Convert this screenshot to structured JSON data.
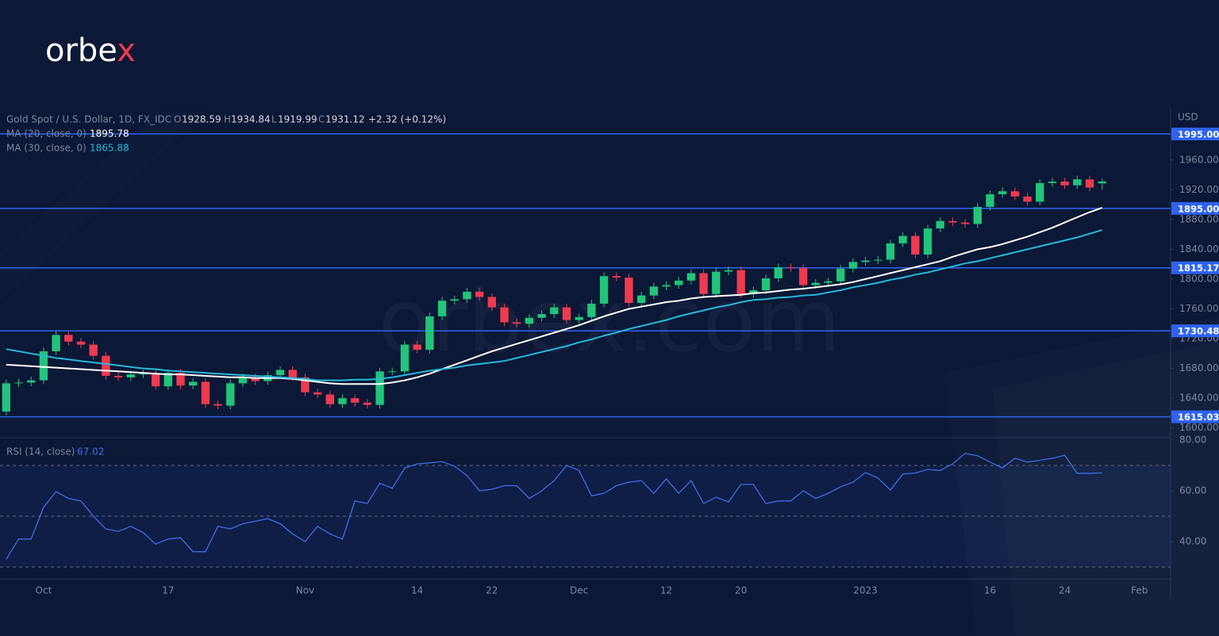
{
  "brand": [
    "orbe",
    "x"
  ],
  "watermark": "orbex.com",
  "chart_data": {
    "type": "candlestick",
    "symbol": "Gold Spot / U.S. Dollar, 1D, FX_IDC",
    "ohlc_letters": [
      "O",
      "H",
      "L",
      "C"
    ],
    "change": "+2.32 (+0.12%)",
    "currency": "USD",
    "up_color": "#22c47a",
    "down_color": "#ef3a4f",
    "grid": false,
    "categories": [
      null,
      null,
      null,
      "Oct",
      null,
      null,
      null,
      null,
      null,
      null,
      null,
      null,
      null,
      "17",
      null,
      null,
      null,
      null,
      null,
      null,
      null,
      null,
      null,
      null,
      "Nov",
      null,
      null,
      null,
      null,
      null,
      null,
      null,
      null,
      "14",
      null,
      null,
      null,
      null,
      null,
      "22",
      null,
      null,
      null,
      null,
      null,
      null,
      "Dec",
      null,
      null,
      null,
      null,
      null,
      null,
      "12",
      null,
      null,
      null,
      null,
      null,
      "20",
      null,
      null,
      null,
      null,
      null,
      null,
      null,
      null,
      null,
      "2023",
      null,
      null,
      null,
      null,
      null,
      null,
      null,
      null,
      null,
      "16",
      null,
      null,
      null,
      null,
      null,
      "24",
      null,
      null,
      null,
      null,
      null,
      "Feb",
      null,
      null
    ],
    "open": [
      1622,
      1660,
      1661,
      1664,
      1703,
      1725,
      1716,
      1712,
      1697,
      1670,
      1668,
      1672,
      1673,
      1656,
      1674,
      1657,
      1662,
      1632,
      1630,
      1660,
      1668,
      1663,
      1671,
      1678,
      1668,
      1648,
      1645,
      1632,
      1640,
      1634,
      1631,
      1676,
      1676,
      1712,
      1705,
      1750,
      1771,
      1773,
      1783,
      1776,
      1762,
      1742,
      1740,
      1748,
      1753,
      1762,
      1745,
      1749,
      1767,
      1804,
      1802,
      1768,
      1778,
      1790,
      1792,
      1798,
      1808,
      1780,
      1810,
      1812,
      1780,
      1785,
      1801,
      1816,
      1815,
      1792,
      1795,
      1797,
      1814,
      1823,
      1825,
      1826,
      1848,
      1858,
      1833,
      1868,
      1878,
      1876,
      1874,
      1897,
      1914,
      1918,
      1911,
      1904,
      1929,
      1931,
      1926,
      1934,
      1928.59,
      null,
      null,
      null,
      null,
      null
    ],
    "high": [
      1665,
      1666,
      1669,
      1708,
      1730,
      1730,
      1721,
      1717,
      1702,
      1675,
      1677,
      1678,
      1678,
      1679,
      1679,
      1667,
      1667,
      1637,
      1665,
      1673,
      1673,
      1676,
      1683,
      1683,
      1673,
      1653,
      1650,
      1645,
      1645,
      1639,
      1681,
      1681,
      1717,
      1717,
      1755,
      1776,
      1778,
      1788,
      1788,
      1781,
      1767,
      1747,
      1753,
      1758,
      1767,
      1767,
      1754,
      1772,
      1809,
      1809,
      1807,
      1783,
      1795,
      1797,
      1803,
      1813,
      1813,
      1815,
      1817,
      1817,
      1790,
      1806,
      1821,
      1821,
      1820,
      1800,
      1802,
      1819,
      1828,
      1830,
      1831,
      1853,
      1863,
      1863,
      1873,
      1883,
      1883,
      1881,
      1902,
      1919,
      1923,
      1923,
      1916,
      1934,
      1936,
      1936,
      1939,
      1939,
      1934.84,
      null,
      null,
      null,
      null,
      null
    ],
    "low": [
      1617,
      1655,
      1656,
      1659,
      1698,
      1711,
      1707,
      1692,
      1665,
      1663,
      1663,
      1667,
      1651,
      1651,
      1652,
      1652,
      1627,
      1625,
      1625,
      1655,
      1658,
      1658,
      1666,
      1663,
      1643,
      1640,
      1627,
      1627,
      1629,
      1626,
      1626,
      1671,
      1671,
      1700,
      1700,
      1745,
      1766,
      1768,
      1771,
      1757,
      1737,
      1735,
      1735,
      1743,
      1748,
      1740,
      1740,
      1744,
      1762,
      1797,
      1763,
      1763,
      1773,
      1785,
      1787,
      1793,
      1775,
      1775,
      1805,
      1775,
      1775,
      1780,
      1796,
      1810,
      1787,
      1787,
      1790,
      1792,
      1809,
      1818,
      1820,
      1821,
      1843,
      1828,
      1828,
      1863,
      1871,
      1869,
      1869,
      1892,
      1909,
      1906,
      1899,
      1899,
      1924,
      1921,
      1921,
      1918,
      1919.99,
      null,
      null,
      null,
      null,
      null
    ],
    "close": [
      1660,
      1661,
      1664,
      1703,
      1725,
      1716,
      1712,
      1697,
      1670,
      1668,
      1672,
      1673,
      1656,
      1674,
      1657,
      1662,
      1632,
      1630,
      1660,
      1668,
      1663,
      1671,
      1678,
      1668,
      1648,
      1645,
      1632,
      1640,
      1634,
      1631,
      1676,
      1676,
      1712,
      1705,
      1750,
      1771,
      1773,
      1783,
      1776,
      1762,
      1742,
      1740,
      1748,
      1753,
      1762,
      1745,
      1749,
      1767,
      1804,
      1802,
      1768,
      1778,
      1790,
      1792,
      1798,
      1808,
      1780,
      1810,
      1812,
      1780,
      1785,
      1801,
      1816,
      1815,
      1792,
      1795,
      1797,
      1814,
      1823,
      1825,
      1826,
      1848,
      1858,
      1833,
      1868,
      1878,
      1876,
      1874,
      1897,
      1914,
      1918,
      1911,
      1904,
      1929,
      1931,
      1926,
      1934,
      1923,
      1931.12,
      null,
      null,
      null,
      null,
      null
    ],
    "series": [
      {
        "name": "MA (20, close, 0)",
        "color": "#ffffff",
        "values": [
          1685,
          1684,
          1683,
          1682,
          1681,
          1680,
          1679,
          1678,
          1677,
          1676,
          1675,
          1674,
          1673,
          1672,
          1672,
          1671,
          1670,
          1669,
          1668,
          1668,
          1667,
          1667,
          1667,
          1666,
          1664,
          1662,
          1660,
          1659,
          1659,
          1659,
          1659,
          1661,
          1664,
          1668,
          1673,
          1679,
          1685,
          1691,
          1697,
          1703,
          1708,
          1713,
          1718,
          1723,
          1728,
          1733,
          1738,
          1744,
          1750,
          1755,
          1760,
          1763,
          1766,
          1769,
          1771,
          1774,
          1776,
          1777,
          1778,
          1779,
          1781,
          1782,
          1784,
          1786,
          1787,
          1789,
          1791,
          1793,
          1796,
          1800,
          1804,
          1808,
          1812,
          1816,
          1820,
          1824,
          1830,
          1835,
          1840,
          1843,
          1847,
          1852,
          1857,
          1863,
          1869,
          1876,
          1883,
          1890,
          1895.78,
          null,
          null,
          null,
          null,
          null
        ]
      },
      {
        "name": "MA (30, close, 0)",
        "color": "#27b9d9",
        "values": [
          1706,
          1703,
          1700,
          1697,
          1694,
          1692,
          1690,
          1688,
          1686,
          1684,
          1682,
          1680,
          1679,
          1677,
          1676,
          1675,
          1674,
          1673,
          1672,
          1671,
          1670,
          1669,
          1668,
          1667,
          1666,
          1664,
          1664,
          1664,
          1665,
          1665,
          1666,
          1668,
          1671,
          1674,
          1677,
          1679,
          1681,
          1684,
          1686,
          1688,
          1690,
          1694,
          1698,
          1702,
          1706,
          1710,
          1715,
          1719,
          1724,
          1728,
          1733,
          1737,
          1741,
          1745,
          1750,
          1754,
          1758,
          1762,
          1765,
          1769,
          1772,
          1773,
          1775,
          1776,
          1778,
          1779,
          1782,
          1785,
          1789,
          1792,
          1795,
          1799,
          1802,
          1806,
          1809,
          1813,
          1817,
          1821,
          1824,
          1828,
          1832,
          1836,
          1840,
          1844,
          1848,
          1852,
          1856,
          1861,
          1865.88,
          null,
          null,
          null,
          null,
          null
        ]
      }
    ],
    "ylim": [
      1589,
      2029
    ],
    "yticks": [
      {
        "value": 1600,
        "label": "1600.00"
      },
      {
        "value": 1640,
        "label": "1640.00"
      },
      {
        "value": 1680,
        "label": "1680.00"
      },
      {
        "value": 1720,
        "label": "1720.00"
      },
      {
        "value": 1760,
        "label": "1760.00"
      },
      {
        "value": 1800,
        "label": "1800.00"
      },
      {
        "value": 1840,
        "label": "1840.00"
      },
      {
        "value": 1880,
        "label": "1880.00"
      },
      {
        "value": 1920,
        "label": "1920.00"
      },
      {
        "value": 1960,
        "label": "1960.00"
      }
    ],
    "levels": [
      {
        "value": 1995,
        "label": "1995.00"
      },
      {
        "value": 1895,
        "label": "1895.00"
      },
      {
        "value": 1815.17,
        "label": "1815.17"
      },
      {
        "value": 1730.48,
        "label": "1730.48"
      },
      {
        "value": 1615.03,
        "label": "1615.03"
      }
    ],
    "level_color": "#2f63f0",
    "rsi": {
      "name": "RSI (14, close)",
      "color": "#3b6fe6",
      "ylim": [
        25.3,
        80.9
      ],
      "yticks": [
        {
          "value": 80,
          "label": "80.00"
        },
        {
          "value": 60,
          "label": "60.00"
        },
        {
          "value": 40,
          "label": "40.00"
        }
      ],
      "levels": [
        70,
        50,
        30
      ],
      "values": [
        33,
        41,
        41,
        53.5,
        59.7,
        57,
        56,
        50,
        45,
        44,
        46,
        43.5,
        39,
        41,
        41.5,
        36,
        36,
        46,
        45,
        47,
        48,
        49,
        47,
        43,
        40,
        46,
        43,
        41,
        56,
        55,
        63,
        61,
        69,
        70.6,
        71,
        71.5,
        69.7,
        66,
        60,
        60.6,
        62,
        62,
        57,
        60,
        64,
        70,
        68,
        58,
        59,
        62,
        63.4,
        64,
        59,
        64.7,
        59,
        64,
        55,
        57.5,
        55.6,
        62.5,
        62.5,
        55,
        56,
        56,
        60,
        57,
        59,
        61.6,
        63.4,
        67.2,
        65,
        60.3,
        66.6,
        67,
        68.4,
        68,
        70.6,
        74.7,
        73.8,
        71.3,
        69,
        72.8,
        71.3,
        72,
        72.8,
        74,
        66.9,
        66.9,
        67.02,
        null,
        null,
        null,
        null,
        null
      ]
    }
  }
}
